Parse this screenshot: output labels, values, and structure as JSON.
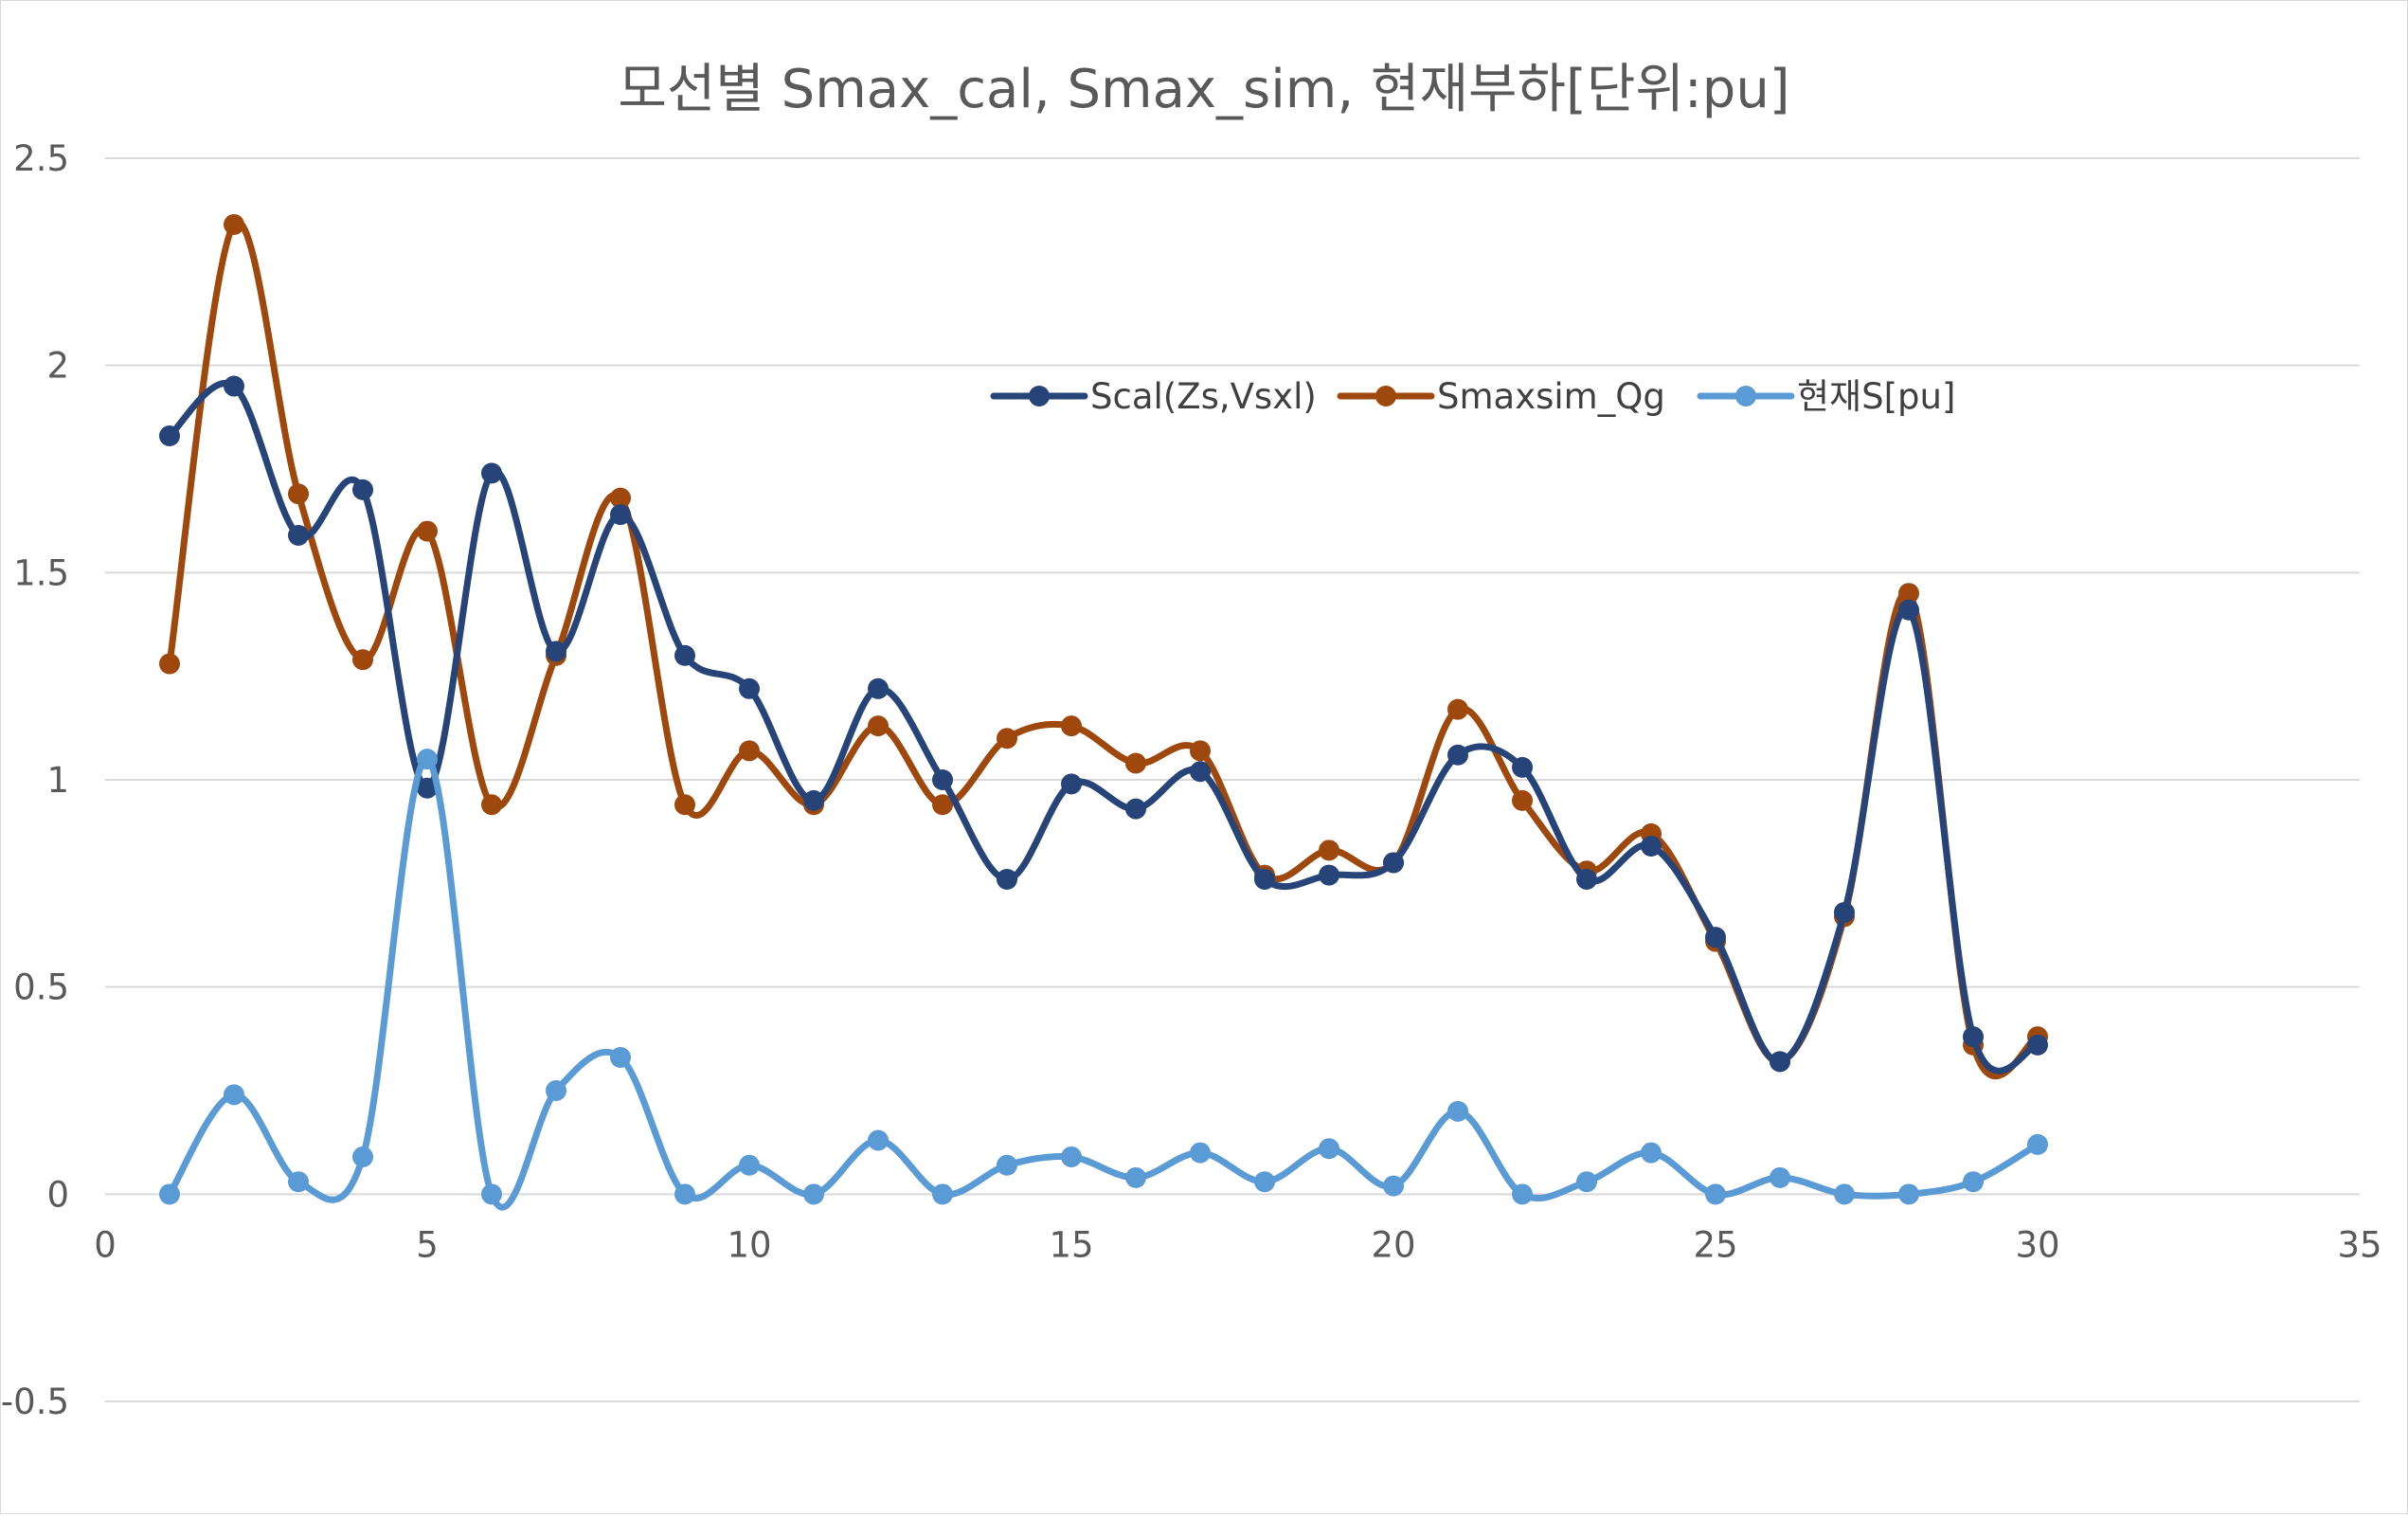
{
  "chart_data": {
    "type": "scatter",
    "title": "모선별 Smax_cal, Smax_sim, 현재부하[단위:pu]",
    "xlabel": "",
    "ylabel": "",
    "xlim": [
      0,
      35
    ],
    "ylim": [
      -0.5,
      2.5
    ],
    "x_ticks": [
      0,
      5,
      10,
      15,
      20,
      25,
      30,
      35
    ],
    "y_ticks": [
      2.5,
      2,
      1.5,
      1,
      0.5,
      0,
      -0.5
    ],
    "x_tick_labels": [
      "0",
      "5",
      "10",
      "15",
      "20",
      "25",
      "30",
      "35"
    ],
    "y_tick_labels": [
      "2.5",
      "2",
      "1.5",
      "1",
      "0.5",
      "0",
      "-0.5"
    ],
    "grid": "horizontal",
    "legend_position": "inside-top-right",
    "line_style": "smoothed lines with markers",
    "x": [
      1,
      2,
      3,
      4,
      5,
      6,
      7,
      8,
      9,
      10,
      11,
      12,
      13,
      14,
      15,
      16,
      17,
      18,
      19,
      20,
      21,
      22,
      23,
      24,
      25,
      26,
      27,
      28,
      29,
      30
    ],
    "series": [
      {
        "name": "Scal(Zs,Vsxl)",
        "color": "#264478",
        "values": [
          1.83,
          1.95,
          1.59,
          1.7,
          0.98,
          1.74,
          1.31,
          1.64,
          1.3,
          1.22,
          0.95,
          1.22,
          1.0,
          0.76,
          0.99,
          0.93,
          1.02,
          0.76,
          0.77,
          0.8,
          1.06,
          1.03,
          0.76,
          0.84,
          0.62,
          0.32,
          0.68,
          1.41,
          0.38,
          0.36
        ]
      },
      {
        "name": "Smaxsim_Qg",
        "color": "#9E480E",
        "values": [
          1.28,
          2.34,
          1.69,
          1.29,
          1.6,
          0.94,
          1.3,
          1.68,
          0.94,
          1.07,
          0.94,
          1.13,
          0.94,
          1.1,
          1.13,
          1.04,
          1.07,
          0.77,
          0.83,
          0.8,
          1.17,
          0.95,
          0.78,
          0.87,
          0.61,
          0.32,
          0.67,
          1.45,
          0.36,
          0.38
        ]
      },
      {
        "name": "현재S[pu]",
        "color": "#5B9BD5",
        "values": [
          0.0,
          0.24,
          0.03,
          0.09,
          1.05,
          0.0,
          0.25,
          0.33,
          0.0,
          0.07,
          0.0,
          0.13,
          0.0,
          0.07,
          0.09,
          0.04,
          0.1,
          0.03,
          0.11,
          0.02,
          0.2,
          0.0,
          0.03,
          0.1,
          0.0,
          0.04,
          0.0,
          0.0,
          0.03,
          0.12
        ]
      }
    ]
  }
}
